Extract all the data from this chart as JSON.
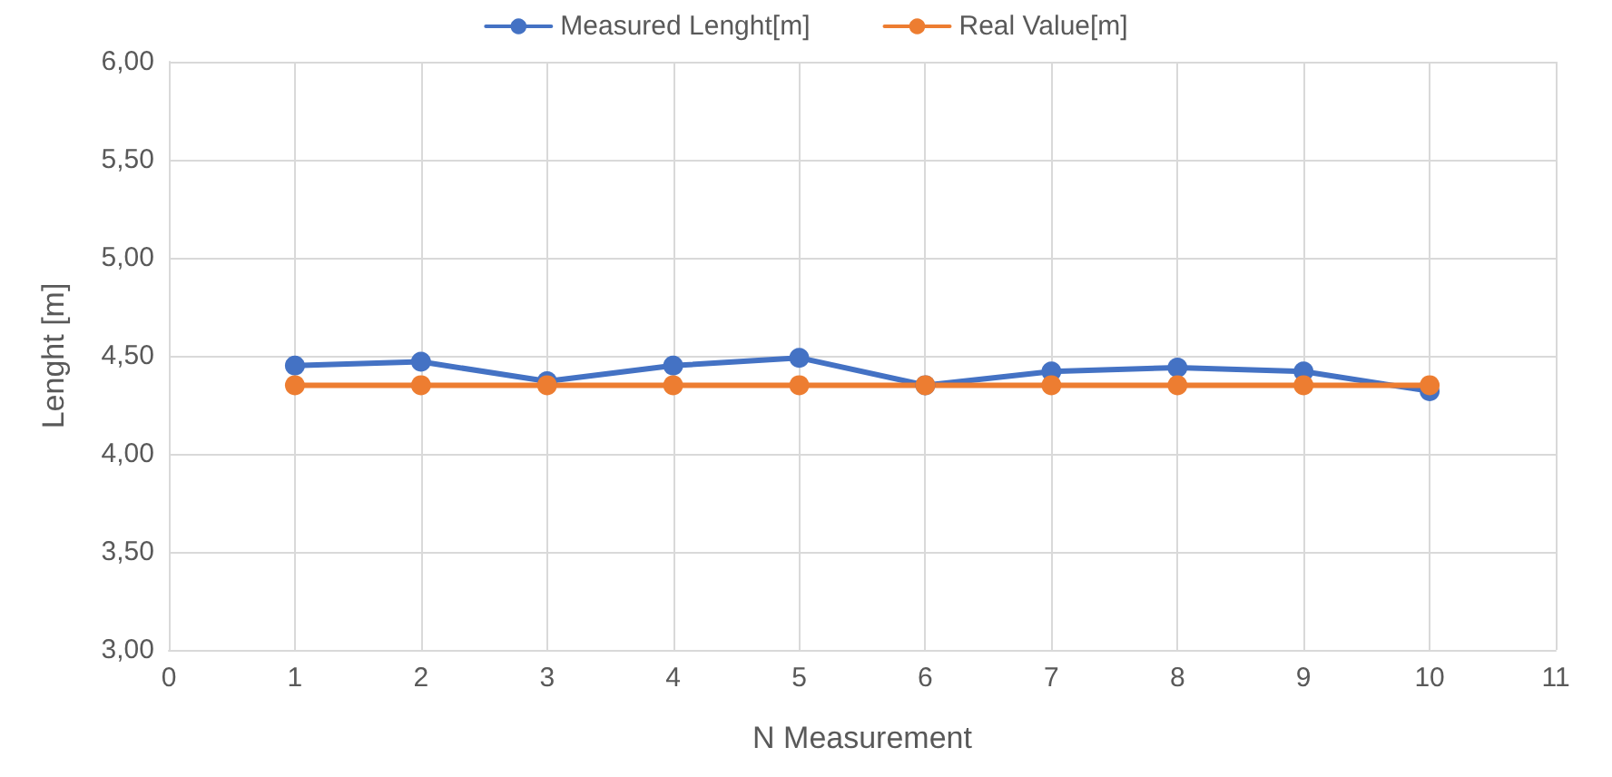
{
  "chart_data": {
    "type": "line",
    "xlabel": "N Measurement",
    "ylabel": "Lenght [m]",
    "x": [
      1,
      2,
      3,
      4,
      5,
      6,
      7,
      8,
      9,
      10
    ],
    "series": [
      {
        "name": "Measured Lenght[m]",
        "color": "#4472c4",
        "values": [
          4.45,
          4.47,
          4.37,
          4.45,
          4.49,
          4.35,
          4.42,
          4.44,
          4.42,
          4.32
        ]
      },
      {
        "name": "Real Value[m]",
        "color": "#ed7d31",
        "values": [
          4.35,
          4.35,
          4.35,
          4.35,
          4.35,
          4.35,
          4.35,
          4.35,
          4.35,
          4.35
        ]
      }
    ],
    "xlim": [
      0,
      11
    ],
    "xticks": [
      0,
      1,
      2,
      3,
      4,
      5,
      6,
      7,
      8,
      9,
      10,
      11
    ],
    "ylim": [
      3,
      6
    ],
    "yticks": [
      {
        "value": 3,
        "label": "3,00"
      },
      {
        "value": 3.5,
        "label": "3,50"
      },
      {
        "value": 4,
        "label": "4,00"
      },
      {
        "value": 4.5,
        "label": "4,50"
      },
      {
        "value": 5,
        "label": "5,00"
      },
      {
        "value": 5.5,
        "label": "5,50"
      },
      {
        "value": 6,
        "label": "6,00"
      }
    ],
    "grid": true,
    "legend": "top",
    "marker": "circle",
    "line_style": "solid"
  }
}
